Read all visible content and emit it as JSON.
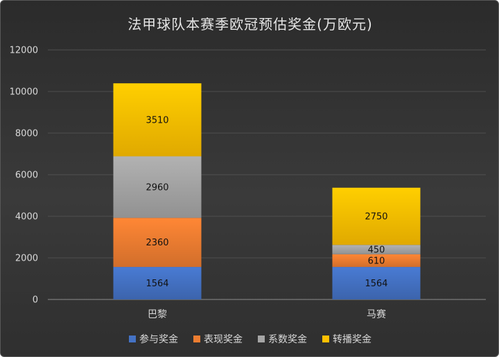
{
  "chart_data": {
    "type": "bar",
    "stacked": true,
    "title": "法甲球队本赛季欧冠预估奖金(万欧元)",
    "categories": [
      "巴黎",
      "马赛"
    ],
    "series": [
      {
        "name": "参与奖金",
        "values": [
          1564,
          1564
        ],
        "color": "#4472c4"
      },
      {
        "name": "表现奖金",
        "values": [
          2360,
          610
        ],
        "color": "#ed7d31"
      },
      {
        "name": "系数奖金",
        "values": [
          2960,
          450
        ],
        "color": "#a5a5a5"
      },
      {
        "name": "转播奖金",
        "values": [
          3510,
          2750
        ],
        "color": "#ffc000"
      }
    ],
    "ylim": [
      0,
      12000
    ],
    "yticks": [
      0,
      2000,
      4000,
      6000,
      8000,
      10000,
      12000
    ],
    "grid": true,
    "legend_position": "bottom",
    "data_labels": true
  }
}
